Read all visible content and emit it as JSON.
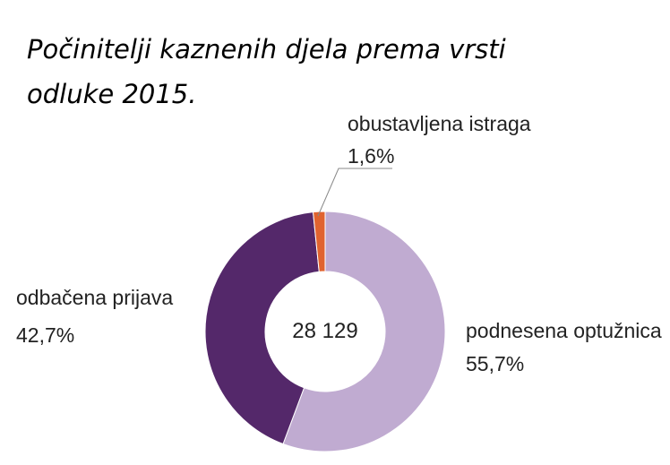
{
  "title": "Počinitelji kaznenih djela prema vrsti odluke 2015.",
  "chart_data": {
    "type": "pie",
    "variant": "donut",
    "total_label": "28 129",
    "slices": [
      {
        "label": "podnesena optužnica",
        "value": 55.7,
        "value_label": "55,7%",
        "color": "#c0abd1"
      },
      {
        "label": "odbačena prijava",
        "value": 42.7,
        "value_label": "42,7%",
        "color": "#54286a"
      },
      {
        "label": "obustavljena istraga",
        "value": 1.6,
        "value_label": "1,6%",
        "color": "#e0632f"
      }
    ]
  }
}
